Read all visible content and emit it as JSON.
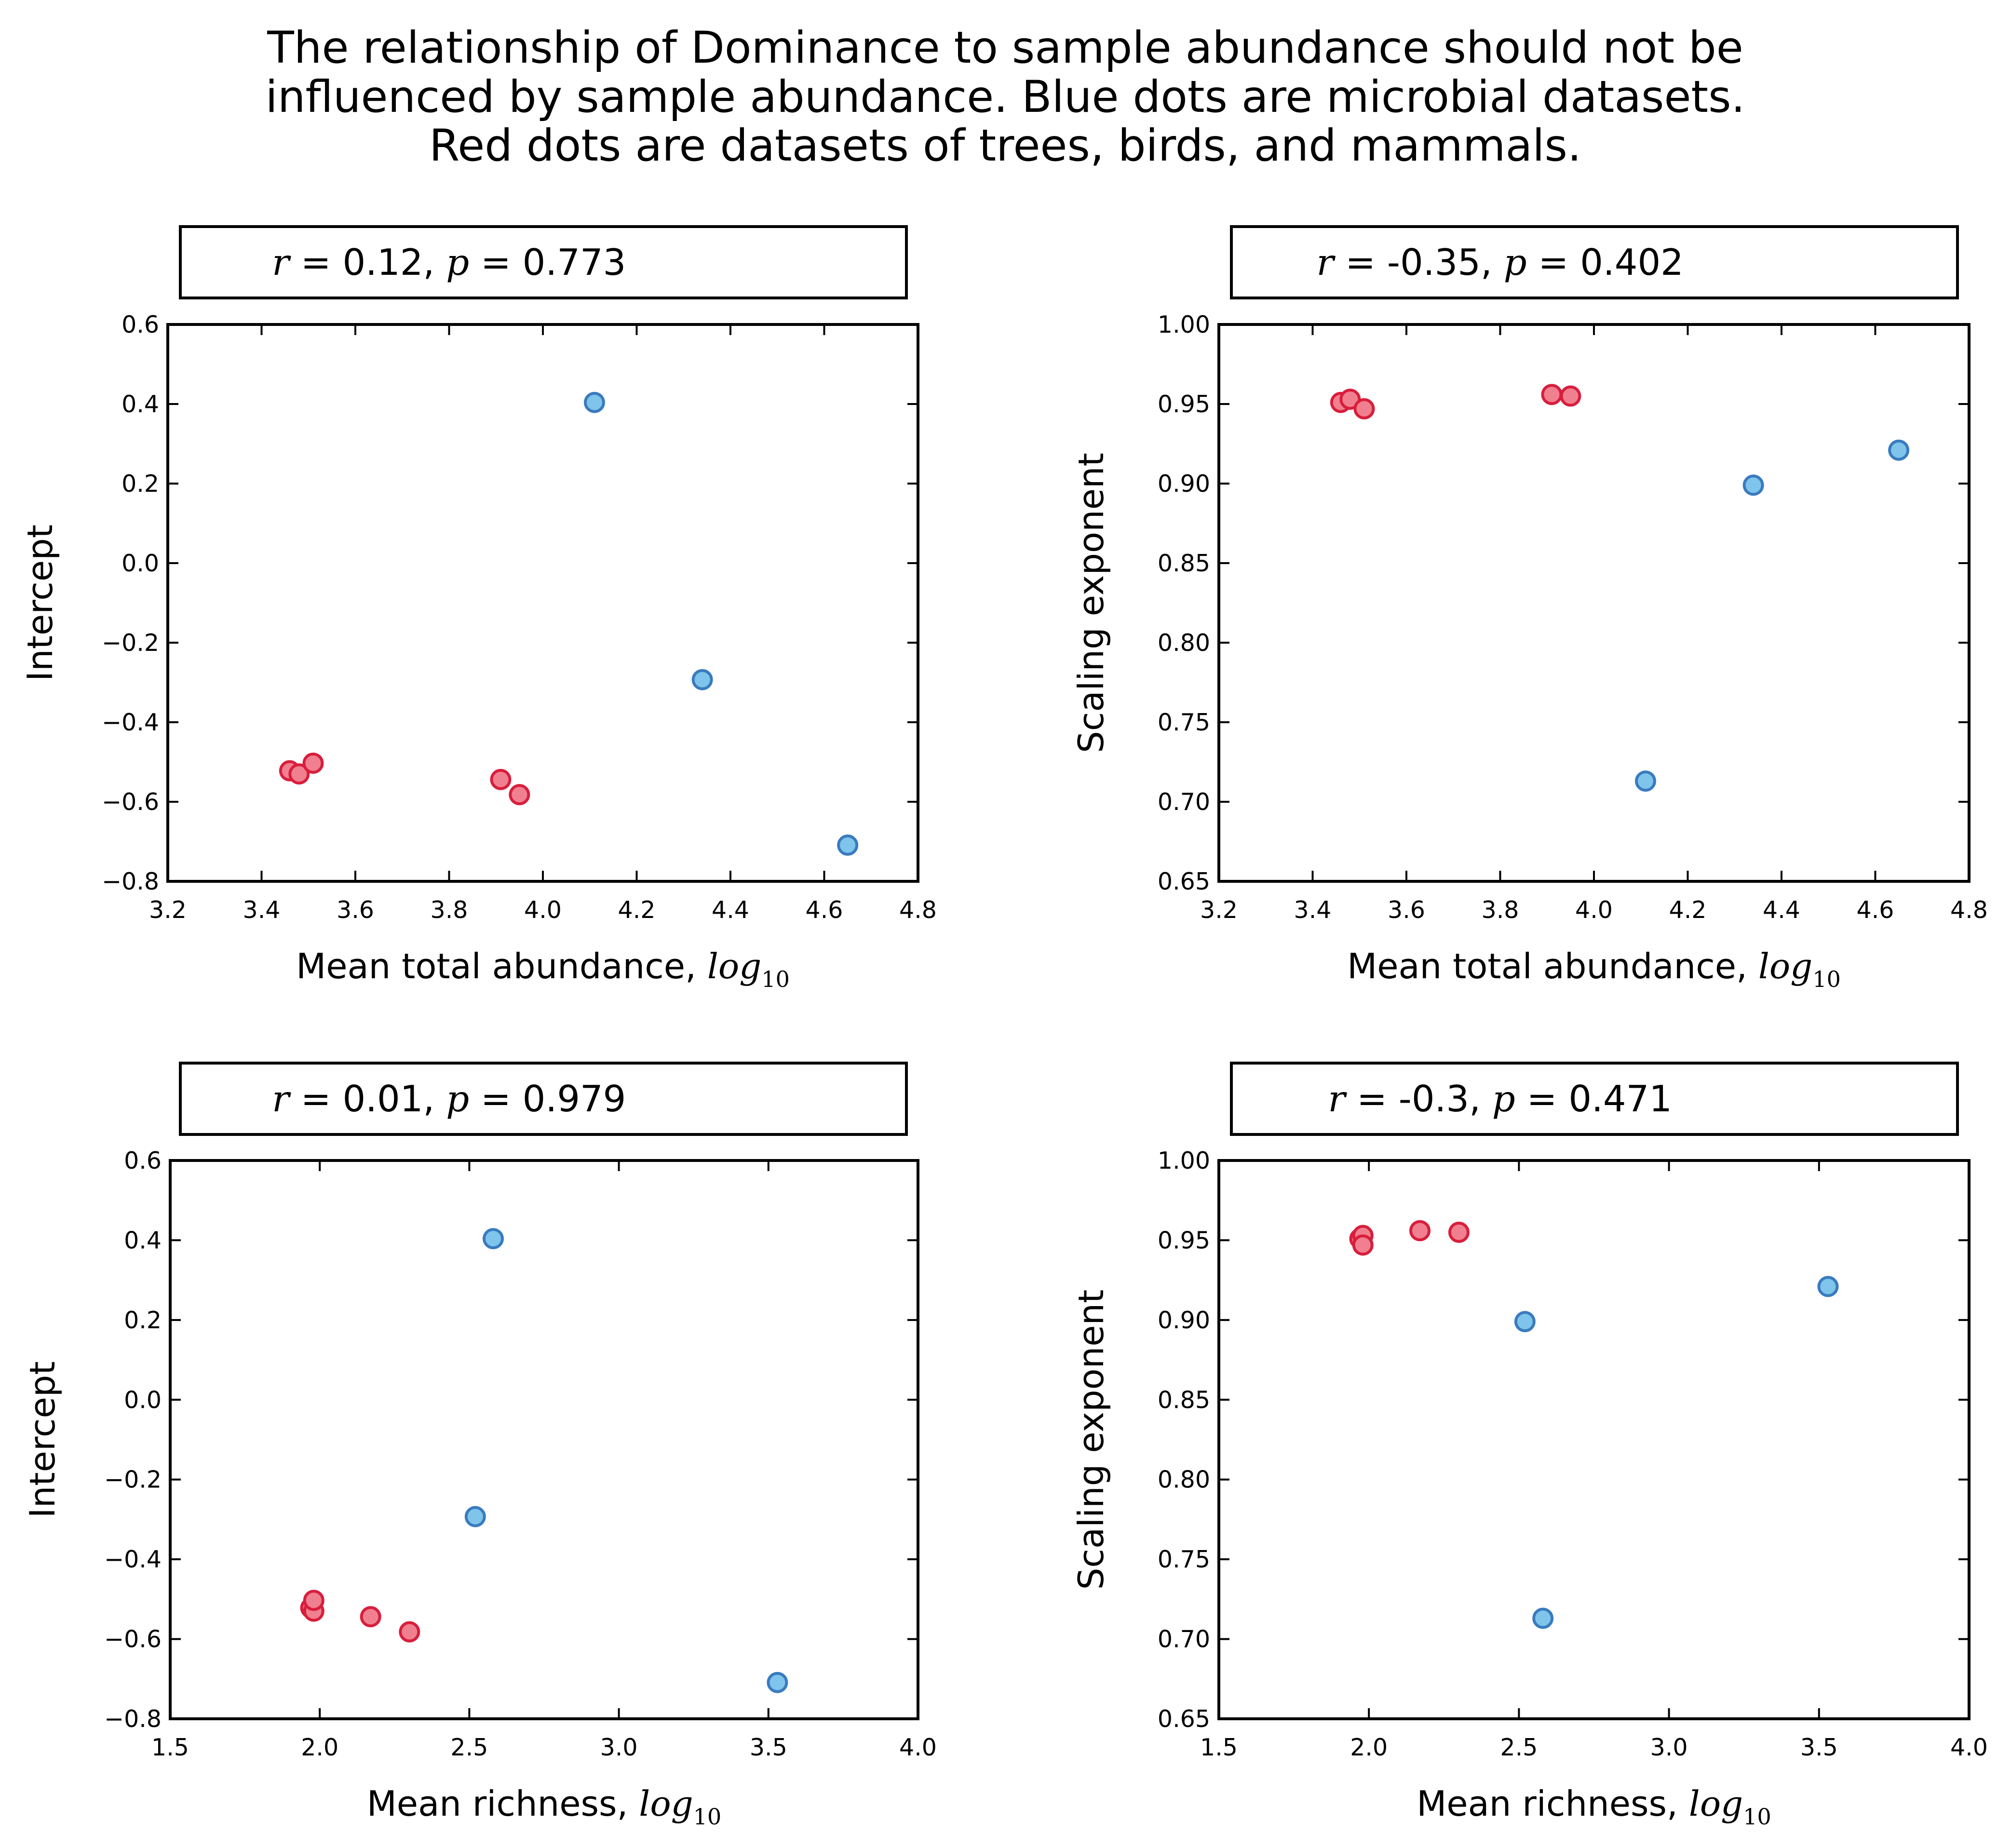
{
  "title": {
    "lines": [
      "The relationship of Dominance to sample abundance should not be",
      "influenced by sample abundance. Blue dots are microbial datasets.",
      "Red dots are datasets of trees, birds, and mammals."
    ]
  },
  "colors": {
    "microbial_fill": "#7fc4ea",
    "microbial_edge": "#3a7bbf",
    "macrobial_fill": "#f08090",
    "macrobial_edge": "#d81e3c"
  },
  "chart_data": [
    {
      "type": "scatter",
      "annotation": {
        "r_symbol": "r",
        "r_value": " = 0.12, ",
        "p_symbol": "p",
        "p_value": " = 0.773"
      },
      "xlabel": "Mean total abundance, ",
      "xlabel_math": "log",
      "xlabel_sub": "10",
      "ylabel": "Intercept",
      "xlim": [
        3.2,
        4.8
      ],
      "ylim": [
        -0.8,
        0.6
      ],
      "xticks": [
        3.2,
        3.4,
        3.6,
        3.8,
        4.0,
        4.2,
        4.4,
        4.6,
        4.8
      ],
      "xtick_labels": [
        "3.2",
        "3.4",
        "3.6",
        "3.8",
        "4.0",
        "4.2",
        "4.4",
        "4.6",
        "4.8"
      ],
      "yticks": [
        -0.8,
        -0.6,
        -0.4,
        -0.2,
        0.0,
        0.2,
        0.4,
        0.6
      ],
      "ytick_labels": [
        "−0.8",
        "−0.6",
        "−0.4",
        "−0.2",
        "0.0",
        "0.2",
        "0.4",
        "0.6"
      ],
      "series": [
        {
          "group": "microbial",
          "points": [
            [
              4.11,
              0.404
            ],
            [
              4.34,
              -0.293
            ],
            [
              4.65,
              -0.709
            ]
          ]
        },
        {
          "group": "macrobial",
          "points": [
            [
              3.46,
              -0.522
            ],
            [
              3.48,
              -0.53
            ],
            [
              3.51,
              -0.503
            ],
            [
              3.91,
              -0.544
            ],
            [
              3.95,
              -0.582
            ]
          ]
        }
      ]
    },
    {
      "type": "scatter",
      "annotation": {
        "r_symbol": "r",
        "r_value": " = -0.35, ",
        "p_symbol": "p",
        "p_value": " = 0.402"
      },
      "xlabel": "Mean total abundance, ",
      "xlabel_math": "log",
      "xlabel_sub": "10",
      "ylabel": "Scaling exponent",
      "xlim": [
        3.2,
        4.8
      ],
      "ylim": [
        0.65,
        1.0
      ],
      "xticks": [
        3.2,
        3.4,
        3.6,
        3.8,
        4.0,
        4.2,
        4.4,
        4.6,
        4.8
      ],
      "xtick_labels": [
        "3.2",
        "3.4",
        "3.6",
        "3.8",
        "4.0",
        "4.2",
        "4.4",
        "4.6",
        "4.8"
      ],
      "yticks": [
        0.65,
        0.7,
        0.75,
        0.8,
        0.85,
        0.9,
        0.95,
        1.0
      ],
      "ytick_labels": [
        "0.65",
        "0.70",
        "0.75",
        "0.80",
        "0.85",
        "0.90",
        "0.95",
        "1.00"
      ],
      "series": [
        {
          "group": "microbial",
          "points": [
            [
              4.11,
              0.713
            ],
            [
              4.34,
              0.899
            ],
            [
              4.65,
              0.921
            ]
          ]
        },
        {
          "group": "macrobial",
          "points": [
            [
              3.46,
              0.951
            ],
            [
              3.48,
              0.953
            ],
            [
              3.51,
              0.947
            ],
            [
              3.91,
              0.956
            ],
            [
              3.95,
              0.955
            ]
          ]
        }
      ]
    },
    {
      "type": "scatter",
      "annotation": {
        "r_symbol": "r",
        "r_value": " = 0.01, ",
        "p_symbol": "p",
        "p_value": " = 0.979"
      },
      "xlabel": "Mean richness, ",
      "xlabel_math": "log",
      "xlabel_sub": "10",
      "ylabel": "Intercept",
      "xlim": [
        1.5,
        4.0
      ],
      "ylim": [
        -0.8,
        0.6
      ],
      "xticks": [
        1.5,
        2.0,
        2.5,
        3.0,
        3.5,
        4.0
      ],
      "xtick_labels": [
        "1.5",
        "2.0",
        "2.5",
        "3.0",
        "3.5",
        "4.0"
      ],
      "yticks": [
        -0.8,
        -0.6,
        -0.4,
        -0.2,
        0.0,
        0.2,
        0.4,
        0.6
      ],
      "ytick_labels": [
        "−0.8",
        "−0.6",
        "−0.4",
        "−0.2",
        "0.0",
        "0.2",
        "0.4",
        "0.6"
      ],
      "series": [
        {
          "group": "microbial",
          "points": [
            [
              2.58,
              0.404
            ],
            [
              2.52,
              -0.293
            ],
            [
              3.53,
              -0.709
            ]
          ]
        },
        {
          "group": "macrobial",
          "points": [
            [
              1.97,
              -0.522
            ],
            [
              1.98,
              -0.53
            ],
            [
              1.98,
              -0.503
            ],
            [
              2.17,
              -0.544
            ],
            [
              2.3,
              -0.582
            ]
          ]
        }
      ]
    },
    {
      "type": "scatter",
      "annotation": {
        "r_symbol": "r",
        "r_value": " = -0.3, ",
        "p_symbol": "p",
        "p_value": " = 0.471"
      },
      "xlabel": "Mean richness, ",
      "xlabel_math": "log",
      "xlabel_sub": "10",
      "ylabel": "Scaling exponent",
      "xlim": [
        1.5,
        4.0
      ],
      "ylim": [
        0.65,
        1.0
      ],
      "xticks": [
        1.5,
        2.0,
        2.5,
        3.0,
        3.5,
        4.0
      ],
      "xtick_labels": [
        "1.5",
        "2.0",
        "2.5",
        "3.0",
        "3.5",
        "4.0"
      ],
      "yticks": [
        0.65,
        0.7,
        0.75,
        0.8,
        0.85,
        0.9,
        0.95,
        1.0
      ],
      "ytick_labels": [
        "0.65",
        "0.70",
        "0.75",
        "0.80",
        "0.85",
        "0.90",
        "0.95",
        "1.00"
      ],
      "series": [
        {
          "group": "microbial",
          "points": [
            [
              2.58,
              0.713
            ],
            [
              2.52,
              0.899
            ],
            [
              3.53,
              0.921
            ]
          ]
        },
        {
          "group": "macrobial",
          "points": [
            [
              1.97,
              0.951
            ],
            [
              1.98,
              0.953
            ],
            [
              1.98,
              0.947
            ],
            [
              2.17,
              0.956
            ],
            [
              2.3,
              0.955
            ]
          ]
        }
      ]
    }
  ]
}
